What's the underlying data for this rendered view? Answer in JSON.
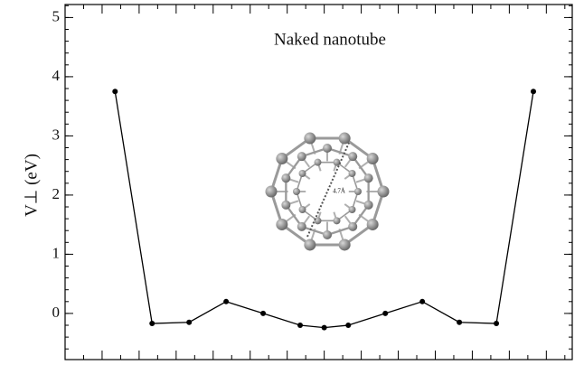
{
  "chart_data": {
    "type": "line",
    "annotation": "Naked nanotube",
    "inset_label": "4.7Å",
    "ylabel": "V⊥  (eV)",
    "x": [
      -5.65,
      -4.65,
      -3.65,
      -2.65,
      -1.65,
      -0.65,
      0,
      0.65,
      1.65,
      2.65,
      3.65,
      4.65,
      5.65
    ],
    "series": [
      {
        "color": "#000000",
        "values": [
          3.75,
          -0.17,
          -0.15,
          0.2,
          0,
          -0.2,
          -0.24,
          -0.2,
          0,
          0.2,
          -0.15,
          -0.17,
          3.75
        ]
      }
    ],
    "xlim": [
      -7,
      6.7
    ],
    "ylim": [
      -0.78,
      5.22
    ],
    "yticks": [
      0,
      1,
      2,
      3,
      4,
      5
    ]
  }
}
